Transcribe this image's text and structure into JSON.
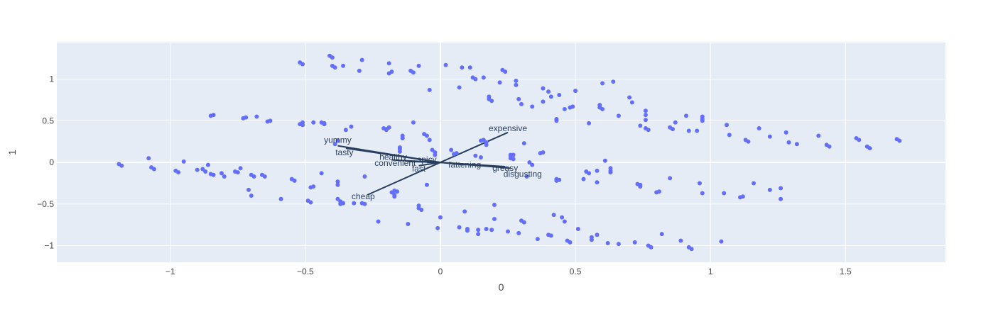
{
  "chart_data": {
    "type": "scatter",
    "title": "",
    "xlabel": "0",
    "ylabel": "1",
    "xlim": [
      -1.42,
      1.87
    ],
    "ylim": [
      -1.2,
      1.44
    ],
    "x_ticks": [
      {
        "value": -1,
        "label": "−1"
      },
      {
        "value": -0.5,
        "label": "−0.5"
      },
      {
        "value": 0,
        "label": "0"
      },
      {
        "value": 0.5,
        "label": "0.5"
      },
      {
        "value": 1,
        "label": "1"
      },
      {
        "value": 1.5,
        "label": "1.5"
      }
    ],
    "y_ticks": [
      {
        "value": -1,
        "label": "−1"
      },
      {
        "value": -0.5,
        "label": "−0.5"
      },
      {
        "value": 0,
        "label": "0"
      },
      {
        "value": 0.5,
        "label": "0.5"
      },
      {
        "value": 1,
        "label": "1"
      }
    ],
    "grid": true,
    "colors": {
      "plot_bg": "#e5ecf6",
      "grid": "#ffffff",
      "marker": "#636efa",
      "vector": "#2a3f5f",
      "text": "#444444"
    },
    "points": [
      {
        "x": -1.19,
        "y": -0.02
      },
      {
        "x": -1.18,
        "y": -0.04
      },
      {
        "x": -1.08,
        "y": 0.05
      },
      {
        "x": -1.07,
        "y": -0.06
      },
      {
        "x": -1.06,
        "y": -0.08
      },
      {
        "x": -0.98,
        "y": -0.1
      },
      {
        "x": -0.97,
        "y": -0.12
      },
      {
        "x": -0.95,
        "y": 0.01
      },
      {
        "x": -0.9,
        "y": -0.09
      },
      {
        "x": -0.88,
        "y": -0.08
      },
      {
        "x": -0.87,
        "y": -0.11
      },
      {
        "x": -0.86,
        "y": -0.03
      },
      {
        "x": -0.85,
        "y": -0.14
      },
      {
        "x": -0.84,
        "y": -0.15
      },
      {
        "x": -0.85,
        "y": 0.56
      },
      {
        "x": -0.84,
        "y": 0.57
      },
      {
        "x": -0.81,
        "y": -0.13
      },
      {
        "x": -0.8,
        "y": -0.17
      },
      {
        "x": -0.76,
        "y": -0.11
      },
      {
        "x": -0.75,
        "y": -0.12
      },
      {
        "x": -0.74,
        "y": -0.07
      },
      {
        "x": -0.73,
        "y": 0.53
      },
      {
        "x": -0.72,
        "y": 0.54
      },
      {
        "x": -0.71,
        "y": -0.33
      },
      {
        "x": -0.7,
        "y": -0.15
      },
      {
        "x": -0.7,
        "y": -0.4
      },
      {
        "x": -0.69,
        "y": -0.17
      },
      {
        "x": -0.68,
        "y": 0.55
      },
      {
        "x": -0.66,
        "y": -0.15
      },
      {
        "x": -0.65,
        "y": -0.17
      },
      {
        "x": -0.64,
        "y": 0.49
      },
      {
        "x": -0.63,
        "y": 0.5
      },
      {
        "x": -0.59,
        "y": -0.44
      },
      {
        "x": -0.55,
        "y": -0.2
      },
      {
        "x": -0.54,
        "y": -0.22
      },
      {
        "x": -0.52,
        "y": 0.46
      },
      {
        "x": -0.51,
        "y": 0.48
      },
      {
        "x": -0.51,
        "y": 0.45
      },
      {
        "x": -0.52,
        "y": 1.2
      },
      {
        "x": -0.51,
        "y": 1.18
      },
      {
        "x": -0.49,
        "y": -0.46
      },
      {
        "x": -0.48,
        "y": -0.48
      },
      {
        "x": -0.48,
        "y": -0.3
      },
      {
        "x": -0.47,
        "y": -0.29
      },
      {
        "x": -0.47,
        "y": 0.48
      },
      {
        "x": -0.44,
        "y": 0.48
      },
      {
        "x": -0.43,
        "y": 0.46
      },
      {
        "x": -0.43,
        "y": 0.47
      },
      {
        "x": -0.44,
        "y": -0.13
      },
      {
        "x": -0.41,
        "y": 1.28
      },
      {
        "x": -0.4,
        "y": 1.26
      },
      {
        "x": -0.4,
        "y": 1.16
      },
      {
        "x": -0.39,
        "y": 1.14
      },
      {
        "x": -0.39,
        "y": 0.22
      },
      {
        "x": -0.38,
        "y": 0.26
      },
      {
        "x": -0.38,
        "y": -0.23
      },
      {
        "x": -0.38,
        "y": -0.27
      },
      {
        "x": -0.38,
        "y": -0.44
      },
      {
        "x": -0.37,
        "y": -0.47
      },
      {
        "x": -0.37,
        "y": -0.5
      },
      {
        "x": -0.36,
        "y": -0.49
      },
      {
        "x": -0.36,
        "y": 1.16
      },
      {
        "x": -0.35,
        "y": 0.39
      },
      {
        "x": -0.32,
        "y": -0.49
      },
      {
        "x": -0.33,
        "y": 0.43
      },
      {
        "x": -0.3,
        "y": 1.1
      },
      {
        "x": -0.29,
        "y": 1.23
      },
      {
        "x": -0.28,
        "y": -0.17
      },
      {
        "x": -0.29,
        "y": -0.49
      },
      {
        "x": -0.28,
        "y": -0.5
      },
      {
        "x": -0.23,
        "y": -0.71
      },
      {
        "x": -0.21,
        "y": 0.41
      },
      {
        "x": -0.2,
        "y": 0.4
      },
      {
        "x": -0.19,
        "y": 0.42
      },
      {
        "x": -0.2,
        "y": 0.39
      },
      {
        "x": -0.19,
        "y": 1.19
      },
      {
        "x": -0.19,
        "y": 1.07
      },
      {
        "x": -0.18,
        "y": 1.09
      },
      {
        "x": -0.18,
        "y": -0.36
      },
      {
        "x": -0.17,
        "y": -0.34
      },
      {
        "x": -0.17,
        "y": -0.39
      },
      {
        "x": -0.16,
        "y": -0.35
      },
      {
        "x": -0.17,
        "y": -0.41
      },
      {
        "x": -0.15,
        "y": 0.16
      },
      {
        "x": -0.15,
        "y": 0.13
      },
      {
        "x": -0.15,
        "y": 0.18
      },
      {
        "x": -0.14,
        "y": 0.29
      },
      {
        "x": -0.14,
        "y": 0.32
      },
      {
        "x": -0.12,
        "y": -0.74
      },
      {
        "x": -0.11,
        "y": 1.1
      },
      {
        "x": -0.1,
        "y": 1.08
      },
      {
        "x": -0.1,
        "y": 0.48
      },
      {
        "x": -0.08,
        "y": 1.16
      },
      {
        "x": -0.08,
        "y": -0.52
      },
      {
        "x": -0.08,
        "y": -0.55
      },
      {
        "x": -0.07,
        "y": -0.57
      },
      {
        "x": -0.06,
        "y": 0.34
      },
      {
        "x": -0.05,
        "y": 0.32
      },
      {
        "x": -0.05,
        "y": -0.27
      },
      {
        "x": -0.04,
        "y": 0.27
      },
      {
        "x": -0.04,
        "y": 0.87
      },
      {
        "x": -0.03,
        "y": 0.15
      },
      {
        "x": -0.02,
        "y": 0.12
      },
      {
        "x": -0.02,
        "y": 0.09
      },
      {
        "x": -0.01,
        "y": -0.79
      },
      {
        "x": 0.0,
        "y": -0.66
      },
      {
        "x": 0.02,
        "y": 1.17
      },
      {
        "x": 0.04,
        "y": 0.15
      },
      {
        "x": 0.05,
        "y": 0.1
      },
      {
        "x": 0.06,
        "y": 0.11
      },
      {
        "x": 0.07,
        "y": -0.78
      },
      {
        "x": 0.07,
        "y": 0.9
      },
      {
        "x": 0.08,
        "y": 1.14
      },
      {
        "x": 0.09,
        "y": -0.59
      },
      {
        "x": 0.1,
        "y": -0.8
      },
      {
        "x": 0.1,
        "y": -0.82
      },
      {
        "x": 0.11,
        "y": 1.14
      },
      {
        "x": 0.12,
        "y": 1.02
      },
      {
        "x": 0.13,
        "y": 1.0
      },
      {
        "x": 0.13,
        "y": 0.08
      },
      {
        "x": 0.14,
        "y": -0.81
      },
      {
        "x": 0.14,
        "y": -0.86
      },
      {
        "x": 0.15,
        "y": 0.06
      },
      {
        "x": 0.15,
        "y": 0.26
      },
      {
        "x": 0.16,
        "y": 0.27
      },
      {
        "x": 0.16,
        "y": 1.02
      },
      {
        "x": 0.17,
        "y": 0.21
      },
      {
        "x": 0.17,
        "y": 0.24
      },
      {
        "x": 0.17,
        "y": -0.8
      },
      {
        "x": 0.18,
        "y": 0.79
      },
      {
        "x": 0.18,
        "y": 0.76
      },
      {
        "x": 0.19,
        "y": 0.74
      },
      {
        "x": 0.19,
        "y": -0.81
      },
      {
        "x": 0.2,
        "y": -0.68
      },
      {
        "x": 0.2,
        "y": -0.51
      },
      {
        "x": 0.22,
        "y": 0.96
      },
      {
        "x": 0.23,
        "y": 1.11
      },
      {
        "x": 0.24,
        "y": 1.09
      },
      {
        "x": 0.25,
        "y": -0.83
      },
      {
        "x": 0.26,
        "y": 0.08
      },
      {
        "x": 0.26,
        "y": 0.09
      },
      {
        "x": 0.26,
        "y": 0.05
      },
      {
        "x": 0.27,
        "y": 0.09
      },
      {
        "x": 0.27,
        "y": 0.04
      },
      {
        "x": 0.28,
        "y": 0.98
      },
      {
        "x": 0.28,
        "y": 0.93
      },
      {
        "x": 0.29,
        "y": -0.85
      },
      {
        "x": 0.29,
        "y": 0.76
      },
      {
        "x": 0.3,
        "y": 0.7
      },
      {
        "x": 0.3,
        "y": -0.7
      },
      {
        "x": 0.31,
        "y": -0.72
      },
      {
        "x": 0.31,
        "y": 0.23
      },
      {
        "x": 0.32,
        "y": -0.17
      },
      {
        "x": 0.33,
        "y": 0.0
      },
      {
        "x": 0.34,
        "y": -0.03
      },
      {
        "x": 0.34,
        "y": 0.67
      },
      {
        "x": 0.36,
        "y": -0.92
      },
      {
        "x": 0.37,
        "y": 0.11
      },
      {
        "x": 0.38,
        "y": 0.12
      },
      {
        "x": 0.38,
        "y": 0.73
      },
      {
        "x": 0.38,
        "y": 0.89
      },
      {
        "x": 0.4,
        "y": 0.85
      },
      {
        "x": 0.4,
        "y": -0.87
      },
      {
        "x": 0.41,
        "y": 0.79
      },
      {
        "x": 0.41,
        "y": -0.88
      },
      {
        "x": 0.42,
        "y": -0.63
      },
      {
        "x": 0.43,
        "y": 0.52
      },
      {
        "x": 0.43,
        "y": 0.5
      },
      {
        "x": 0.43,
        "y": -0.2
      },
      {
        "x": 0.43,
        "y": -0.22
      },
      {
        "x": 0.44,
        "y": -0.21
      },
      {
        "x": 0.44,
        "y": 0.81
      },
      {
        "x": 0.45,
        "y": -0.66
      },
      {
        "x": 0.46,
        "y": -0.71
      },
      {
        "x": 0.46,
        "y": 0.64
      },
      {
        "x": 0.47,
        "y": -0.94
      },
      {
        "x": 0.48,
        "y": -0.96
      },
      {
        "x": 0.48,
        "y": 0.66
      },
      {
        "x": 0.49,
        "y": 0.67
      },
      {
        "x": 0.5,
        "y": 0.86
      },
      {
        "x": 0.51,
        "y": -0.8
      },
      {
        "x": 0.53,
        "y": -0.2
      },
      {
        "x": 0.54,
        "y": -0.11
      },
      {
        "x": 0.55,
        "y": -0.13
      },
      {
        "x": 0.55,
        "y": 0.47
      },
      {
        "x": 0.56,
        "y": -0.9
      },
      {
        "x": 0.56,
        "y": -0.93
      },
      {
        "x": 0.58,
        "y": -0.87
      },
      {
        "x": 0.58,
        "y": -0.1
      },
      {
        "x": 0.58,
        "y": -0.24
      },
      {
        "x": 0.59,
        "y": 0.69
      },
      {
        "x": 0.59,
        "y": 0.66
      },
      {
        "x": 0.6,
        "y": 0.64
      },
      {
        "x": 0.6,
        "y": 0.95
      },
      {
        "x": 0.61,
        "y": 0.02
      },
      {
        "x": 0.62,
        "y": -0.97
      },
      {
        "x": 0.63,
        "y": -0.1
      },
      {
        "x": 0.63,
        "y": -0.12
      },
      {
        "x": 0.63,
        "y": -0.07
      },
      {
        "x": 0.64,
        "y": 0.97
      },
      {
        "x": 0.66,
        "y": -0.98
      },
      {
        "x": 0.66,
        "y": 0.56
      },
      {
        "x": 0.7,
        "y": 0.78
      },
      {
        "x": 0.71,
        "y": 0.72
      },
      {
        "x": 0.72,
        "y": -0.96
      },
      {
        "x": 0.73,
        "y": -0.26
      },
      {
        "x": 0.74,
        "y": -0.29
      },
      {
        "x": 0.74,
        "y": -0.27
      },
      {
        "x": 0.74,
        "y": 0.44
      },
      {
        "x": 0.76,
        "y": 0.62
      },
      {
        "x": 0.76,
        "y": 0.57
      },
      {
        "x": 0.76,
        "y": 0.51
      },
      {
        "x": 0.76,
        "y": 0.41
      },
      {
        "x": 0.77,
        "y": 0.39
      },
      {
        "x": 0.77,
        "y": -1.0
      },
      {
        "x": 0.78,
        "y": -1.02
      },
      {
        "x": 0.8,
        "y": -0.36
      },
      {
        "x": 0.81,
        "y": -0.35
      },
      {
        "x": 0.82,
        "y": -0.86
      },
      {
        "x": 0.85,
        "y": 0.42
      },
      {
        "x": 0.86,
        "y": 0.4
      },
      {
        "x": 0.85,
        "y": -0.19
      },
      {
        "x": 0.87,
        "y": 0.48
      },
      {
        "x": 0.89,
        "y": -0.94
      },
      {
        "x": 0.91,
        "y": 0.56
      },
      {
        "x": 0.92,
        "y": 0.38
      },
      {
        "x": 0.92,
        "y": -1.02
      },
      {
        "x": 0.93,
        "y": -1.04
      },
      {
        "x": 0.95,
        "y": 0.38
      },
      {
        "x": 0.96,
        "y": -0.25
      },
      {
        "x": 0.97,
        "y": -0.37
      },
      {
        "x": 0.97,
        "y": 0.55
      },
      {
        "x": 0.97,
        "y": 0.52
      },
      {
        "x": 0.97,
        "y": 0.5
      },
      {
        "x": 1.04,
        "y": -0.95
      },
      {
        "x": 1.05,
        "y": -0.37
      },
      {
        "x": 1.06,
        "y": 0.45
      },
      {
        "x": 1.07,
        "y": 0.33
      },
      {
        "x": 1.11,
        "y": -0.42
      },
      {
        "x": 1.12,
        "y": -0.41
      },
      {
        "x": 1.13,
        "y": 0.27
      },
      {
        "x": 1.14,
        "y": 0.25
      },
      {
        "x": 1.16,
        "y": -0.25
      },
      {
        "x": 1.18,
        "y": 0.41
      },
      {
        "x": 1.22,
        "y": 0.31
      },
      {
        "x": 1.22,
        "y": -0.33
      },
      {
        "x": 1.26,
        "y": -0.31
      },
      {
        "x": 1.26,
        "y": -0.44
      },
      {
        "x": 1.28,
        "y": 0.36
      },
      {
        "x": 1.29,
        "y": 0.24
      },
      {
        "x": 1.32,
        "y": 0.22
      },
      {
        "x": 1.4,
        "y": 0.32
      },
      {
        "x": 1.43,
        "y": 0.21
      },
      {
        "x": 1.44,
        "y": 0.19
      },
      {
        "x": 1.54,
        "y": 0.29
      },
      {
        "x": 1.55,
        "y": 0.27
      },
      {
        "x": 1.58,
        "y": 0.19
      },
      {
        "x": 1.59,
        "y": 0.17
      },
      {
        "x": 1.69,
        "y": 0.28
      },
      {
        "x": 1.7,
        "y": 0.26
      }
    ],
    "vectors": [
      {
        "label": "yummy",
        "x": -0.38,
        "y": 0.2,
        "dx": 0,
        "dy": -4,
        "anchor": "middle"
      },
      {
        "label": "tasty",
        "x": -0.35,
        "y": 0.17,
        "dx": -2,
        "dy": 10,
        "anchor": "middle"
      },
      {
        "label": "healthy",
        "x": -0.18,
        "y": 0.03,
        "dx": 2,
        "dy": 0,
        "anchor": "middle"
      },
      {
        "label": "convenient",
        "x": -0.12,
        "y": 0.01,
        "dx": -18,
        "dy": 6,
        "anchor": "middle"
      },
      {
        "label": "spicy",
        "x": -0.05,
        "y": 0.0,
        "dx": 0,
        "dy": 0,
        "anchor": "middle"
      },
      {
        "label": "fast",
        "x": -0.08,
        "y": -0.04,
        "dx": 0,
        "dy": 8,
        "anchor": "middle"
      },
      {
        "label": "fattening",
        "x": 0.09,
        "y": -0.03,
        "dx": 0,
        "dy": 4,
        "anchor": "middle"
      },
      {
        "label": "greasy",
        "x": 0.24,
        "y": -0.05,
        "dx": 0,
        "dy": 6,
        "anchor": "middle"
      },
      {
        "label": "disgusting",
        "x": 0.26,
        "y": -0.07,
        "dx": 17,
        "dy": 12,
        "anchor": "middle"
      },
      {
        "label": "expensive",
        "x": 0.25,
        "y": 0.36,
        "dx": 0,
        "dy": -2,
        "anchor": "middle"
      },
      {
        "label": "cheap",
        "x": -0.27,
        "y": -0.39,
        "dx": -6,
        "dy": 6,
        "anchor": "middle"
      }
    ]
  }
}
